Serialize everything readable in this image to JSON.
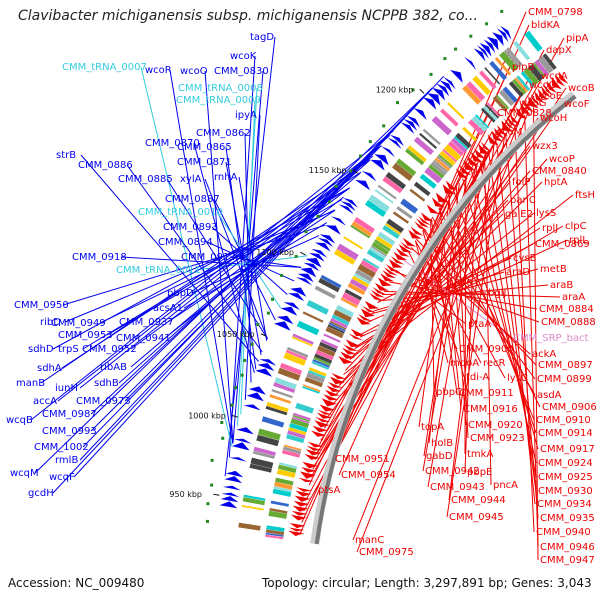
{
  "title": "Clavibacter michiganensis subsp. michiganensis NCPPB 382, co...",
  "footer": {
    "accession": "Accession: NC_009480",
    "summary": "Topology: circular; Length: 3,297,891 bp; Genes: 3,043"
  },
  "colors": {
    "forward_gene": "#0000ee",
    "reverse_gene": "#ee0000",
    "trna": "#33ccdd",
    "rrna": "#dd88cc",
    "backbone": "#777777"
  },
  "ticks": [
    "950 kbp",
    "1000 kbp",
    "1050 kbp",
    "1100 kbp",
    "1150 kbp",
    "1200 kbp"
  ],
  "left_labels": [
    {
      "text": "tagD",
      "type": "cds"
    },
    {
      "text": "wcoK",
      "type": "cds"
    },
    {
      "text": "CMM_tRNA_0007",
      "type": "trna"
    },
    {
      "text": "wcoR",
      "type": "cds"
    },
    {
      "text": "wcoO",
      "type": "cds"
    },
    {
      "text": "CMM_0830",
      "type": "cds"
    },
    {
      "text": "CMM_tRNA_0008",
      "type": "trna"
    },
    {
      "text": "CMM_tRNA_0009",
      "type": "trna"
    },
    {
      "text": "ipyA",
      "type": "cds"
    },
    {
      "text": "CMM_0862",
      "type": "cds"
    },
    {
      "text": "CMM_0870",
      "type": "cds"
    },
    {
      "text": "CMM_0865",
      "type": "cds"
    },
    {
      "text": "strB",
      "type": "cds"
    },
    {
      "text": "CMM_0871",
      "type": "cds"
    },
    {
      "text": "CMM_0886",
      "type": "cds"
    },
    {
      "text": "xylA",
      "type": "cds"
    },
    {
      "text": "rnhA",
      "type": "cds"
    },
    {
      "text": "CMM_0885",
      "type": "cds"
    },
    {
      "text": "CMM_0887",
      "type": "cds"
    },
    {
      "text": "CMM_tRNA_0010",
      "type": "trna"
    },
    {
      "text": "CMM_0893",
      "type": "cds"
    },
    {
      "text": "CMM_0894",
      "type": "cds"
    },
    {
      "text": "CMM_0918",
      "type": "cds"
    },
    {
      "text": "CMM_0913",
      "type": "cds"
    },
    {
      "text": "CMM_tRNA_0011",
      "type": "trna"
    },
    {
      "text": "pbpD",
      "type": "cds"
    },
    {
      "text": "acsA1",
      "type": "cds"
    },
    {
      "text": "CMM_0950",
      "type": "cds"
    },
    {
      "text": "CMM_0937",
      "type": "cds"
    },
    {
      "text": "ribD",
      "type": "cds"
    },
    {
      "text": "CMM_0949",
      "type": "cds"
    },
    {
      "text": "CMM_0941",
      "type": "cds"
    },
    {
      "text": "CMM_0953",
      "type": "cds"
    },
    {
      "text": "sdhD",
      "type": "cds"
    },
    {
      "text": "trpS",
      "type": "cds"
    },
    {
      "text": "CMM_0952",
      "type": "cds"
    },
    {
      "text": "sdhA",
      "type": "cds"
    },
    {
      "text": "ribAB",
      "type": "cds"
    },
    {
      "text": "manB",
      "type": "cds"
    },
    {
      "text": "sdhB",
      "type": "cds"
    },
    {
      "text": "iunH",
      "type": "cds"
    },
    {
      "text": "accA",
      "type": "cds"
    },
    {
      "text": "CMM_0973",
      "type": "cds"
    },
    {
      "text": "wcqB",
      "type": "cds"
    },
    {
      "text": "CMM_0987",
      "type": "cds"
    },
    {
      "text": "CMM_0993",
      "type": "cds"
    },
    {
      "text": "CMM_1002",
      "type": "cds"
    },
    {
      "text": "rmlB",
      "type": "cds"
    },
    {
      "text": "wcqM",
      "type": "cds"
    },
    {
      "text": "wcqF",
      "type": "cds"
    },
    {
      "text": "gcdH",
      "type": "cds"
    }
  ],
  "right_labels": [
    {
      "text": "CMM_0798",
      "type": "cds"
    },
    {
      "text": "bldKA",
      "type": "cds"
    },
    {
      "text": "pipA",
      "type": "cds"
    },
    {
      "text": "dapX",
      "type": "cds"
    },
    {
      "text": "pipB",
      "type": "cds"
    },
    {
      "text": "wcoA",
      "type": "cds"
    },
    {
      "text": "wcoC",
      "type": "cds"
    },
    {
      "text": "wcoB",
      "type": "cds"
    },
    {
      "text": "wcoE",
      "type": "cds"
    },
    {
      "text": "wcoG",
      "type": "cds"
    },
    {
      "text": "wcoF",
      "type": "cds"
    },
    {
      "text": "CMM_0828",
      "type": "cds"
    },
    {
      "text": "wcoH",
      "type": "cds"
    },
    {
      "text": "wcoM",
      "type": "cds"
    },
    {
      "text": "wzx3",
      "type": "cds"
    },
    {
      "text": "wcoP",
      "type": "cds"
    },
    {
      "text": "CMM_0840",
      "type": "cds"
    },
    {
      "text": "folP",
      "type": "cds"
    },
    {
      "text": "hptA",
      "type": "cds"
    },
    {
      "text": "ftsH",
      "type": "cds"
    },
    {
      "text": "panC",
      "type": "cds"
    },
    {
      "text": "galE2",
      "type": "cds"
    },
    {
      "text": "lysS",
      "type": "cds"
    },
    {
      "text": "rplJ",
      "type": "cds"
    },
    {
      "text": "clpC",
      "type": "cds"
    },
    {
      "text": "rplL",
      "type": "cds"
    },
    {
      "text": "CMM_0869",
      "type": "cds"
    },
    {
      "text": "cysB",
      "type": "cds"
    },
    {
      "text": "araD",
      "type": "cds"
    },
    {
      "text": "metB",
      "type": "cds"
    },
    {
      "text": "CMM_0890",
      "type": "cds"
    },
    {
      "text": "araB",
      "type": "cds"
    },
    {
      "text": "bglJ",
      "type": "cds"
    },
    {
      "text": "araA",
      "type": "cds"
    },
    {
      "text": "CMM_0884",
      "type": "cds"
    },
    {
      "text": "ptaA",
      "type": "cds"
    },
    {
      "text": "CMM_0888",
      "type": "cds"
    },
    {
      "text": "CMM_SRP_bact",
      "type": "rrna"
    },
    {
      "text": "CMM_0900",
      "type": "cds"
    },
    {
      "text": "ackA",
      "type": "cds"
    },
    {
      "text": "mqoA",
      "type": "cds"
    },
    {
      "text": "recR",
      "type": "cds"
    },
    {
      "text": "CMM_0897",
      "type": "cds"
    },
    {
      "text": "tdi-A",
      "type": "cds"
    },
    {
      "text": "lysC",
      "type": "cds"
    },
    {
      "text": "CMM_0899",
      "type": "cds"
    },
    {
      "text": "pbpC",
      "type": "cds"
    },
    {
      "text": "CMM_0911",
      "type": "cds"
    },
    {
      "text": "asdA",
      "type": "cds"
    },
    {
      "text": "CMM_0916",
      "type": "cds"
    },
    {
      "text": "CMM_0906",
      "type": "cds"
    },
    {
      "text": "topA",
      "type": "cds"
    },
    {
      "text": "CMM_0920",
      "type": "cds"
    },
    {
      "text": "CMM_0910",
      "type": "cds"
    },
    {
      "text": "holB",
      "type": "cds"
    },
    {
      "text": "CMM_0923",
      "type": "cds"
    },
    {
      "text": "CMM_0914",
      "type": "cds"
    },
    {
      "text": "gabD",
      "type": "cds"
    },
    {
      "text": "tmkA",
      "type": "cds"
    },
    {
      "text": "CMM_0917",
      "type": "cds"
    },
    {
      "text": "CMM_0951",
      "type": "cds"
    },
    {
      "text": "CMM_0924",
      "type": "cds"
    },
    {
      "text": "CMM_0942",
      "type": "cds"
    },
    {
      "text": "pbpE",
      "type": "cds"
    },
    {
      "text": "CMM_0954",
      "type": "cds"
    },
    {
      "text": "CMM_0925",
      "type": "cds"
    },
    {
      "text": "CMM_0943",
      "type": "cds"
    },
    {
      "text": "pncA",
      "type": "cds"
    },
    {
      "text": "CMM_0930",
      "type": "cds"
    },
    {
      "text": "ptsA",
      "type": "cds"
    },
    {
      "text": "CMM_0944",
      "type": "cds"
    },
    {
      "text": "CMM_0934",
      "type": "cds"
    },
    {
      "text": "CMM_0945",
      "type": "cds"
    },
    {
      "text": "CMM_0935",
      "type": "cds"
    },
    {
      "text": "CMM_0940",
      "type": "cds"
    },
    {
      "text": "manC",
      "type": "cds"
    },
    {
      "text": "CMM_0946",
      "type": "cds"
    },
    {
      "text": "CMM_0975",
      "type": "cds"
    },
    {
      "text": "CMM_0947",
      "type": "cds"
    }
  ]
}
